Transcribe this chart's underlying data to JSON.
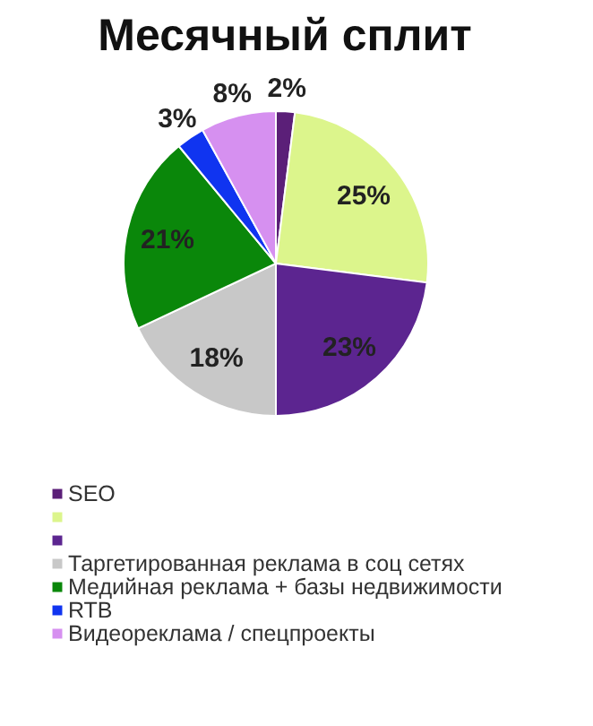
{
  "chart_data": {
    "type": "pie",
    "title": "Месячный сплит",
    "categories": [
      "SEO",
      null,
      null,
      "Таргетированная реклама в соц сетях",
      "Медийная реклама + базы недвижимости",
      "RTB",
      "Видеореклама / спецпроекты"
    ],
    "values": [
      2,
      25,
      23,
      18,
      21,
      3,
      8
    ],
    "value_labels": [
      "2%",
      "25%",
      "23%",
      "18%",
      "21%",
      "3%",
      "8%"
    ],
    "colors": [
      "#5b1f78",
      "#dcf58c",
      "#5c2590",
      "#c8c8c8",
      "#0a870a",
      "#1034f0",
      "#d690f0"
    ],
    "legend": "bottom"
  }
}
